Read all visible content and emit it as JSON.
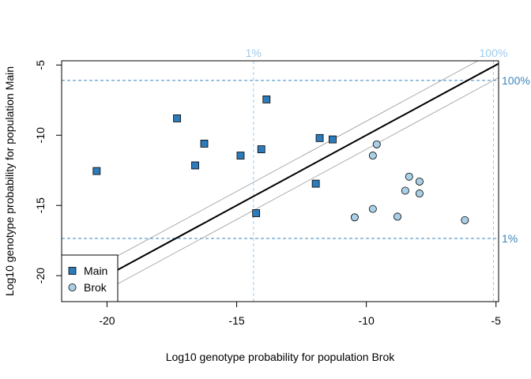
{
  "colors": {
    "main_marker": "#2E7BBA",
    "brok_marker": "#A9CFE6",
    "main_ref": "#3A85BF",
    "brok_ref": "#9DCBEA",
    "diagonal": "#000000",
    "band": "#9A9A9A"
  },
  "chart_data": {
    "type": "scatter",
    "title": "",
    "xlabel": "Log10 genotype probability for population Brok",
    "ylabel": "Log10 genotype probability for population Main",
    "xlim": [
      -21.75,
      -4.9
    ],
    "ylim": [
      -21.85,
      -4.7
    ],
    "xticks": [
      -20,
      -15,
      -10,
      -5
    ],
    "yticks": [
      -20,
      -15,
      -10,
      -5
    ],
    "xtick_labels": [
      "-20",
      "-15",
      "-10",
      "-5"
    ],
    "ytick_labels": [
      "-20",
      "-15",
      "-10",
      "-5"
    ],
    "diagonal": {
      "label": "y = x",
      "band_offset": 1.0
    },
    "reference_lines": {
      "brok": [
        {
          "value": -14.35,
          "label": "1%"
        },
        {
          "value": -5.1,
          "label": "100%"
        }
      ],
      "main": [
        {
          "value": -6.1,
          "label": "100%"
        },
        {
          "value": -17.35,
          "label": "1%"
        }
      ]
    },
    "series": [
      {
        "name": "Main",
        "marker": "square",
        "points": [
          {
            "x": -20.4,
            "y": -12.55
          },
          {
            "x": -17.3,
            "y": -8.8
          },
          {
            "x": -16.25,
            "y": -10.6
          },
          {
            "x": -16.6,
            "y": -12.15
          },
          {
            "x": -14.85,
            "y": -11.45
          },
          {
            "x": -14.05,
            "y": -11.0
          },
          {
            "x": -13.85,
            "y": -7.45
          },
          {
            "x": -14.25,
            "y": -15.55
          },
          {
            "x": -11.8,
            "y": -10.2
          },
          {
            "x": -11.3,
            "y": -10.3
          },
          {
            "x": -11.95,
            "y": -13.45
          }
        ]
      },
      {
        "name": "Brok",
        "marker": "circle",
        "points": [
          {
            "x": -9.6,
            "y": -10.65
          },
          {
            "x": -9.75,
            "y": -11.45
          },
          {
            "x": -8.35,
            "y": -12.95
          },
          {
            "x": -7.95,
            "y": -13.3
          },
          {
            "x": -8.5,
            "y": -13.95
          },
          {
            "x": -7.95,
            "y": -14.15
          },
          {
            "x": -9.75,
            "y": -15.25
          },
          {
            "x": -10.45,
            "y": -15.85
          },
          {
            "x": -8.8,
            "y": -15.8
          },
          {
            "x": -6.2,
            "y": -16.05
          }
        ]
      }
    ],
    "legend": {
      "position": "bottom-left",
      "entries": [
        "Main",
        "Brok"
      ]
    }
  }
}
